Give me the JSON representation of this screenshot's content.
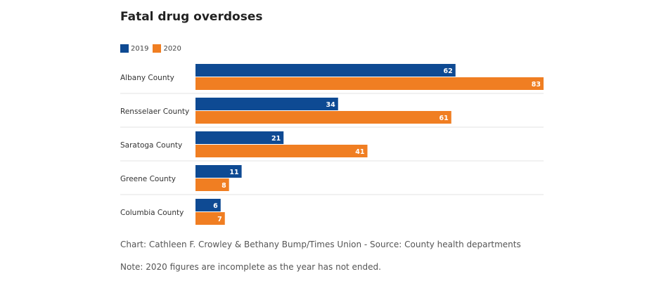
{
  "chart_data": {
    "type": "bar",
    "orientation": "horizontal",
    "title": "Fatal drug overdoses",
    "categories": [
      "Albany County",
      "Rensselaer County",
      "Saratoga County",
      "Greene County",
      "Columbia County"
    ],
    "series": [
      {
        "name": "2019",
        "color": "#0e4a93",
        "values": [
          62,
          34,
          21,
          11,
          6
        ]
      },
      {
        "name": "2020",
        "color": "#f07e22",
        "values": [
          83,
          61,
          41,
          8,
          7
        ]
      }
    ],
    "xlim": [
      0,
      83
    ],
    "legend": "top-left",
    "data_labels": true,
    "grid": false
  },
  "credit": "Chart: Cathleen F. Crowley & Bethany Bump/Times Union - Source: County health departments",
  "note": "Note: 2020 figures are incomplete as the year has not ended."
}
